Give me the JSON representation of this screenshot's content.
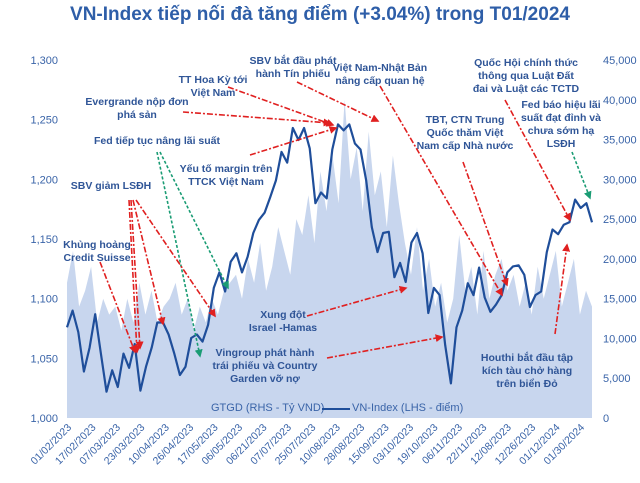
{
  "chart_data": {
    "type": "line",
    "title": "VN-Index tiếp nối đà tăng điểm (+3.04%) trong T01/2024",
    "x_tick_labels": [
      "01/02/2023",
      "17/02/2023",
      "07/03/2023",
      "23/03/2023",
      "10/04/2023",
      "26/04/2023",
      "17/05/2023",
      "06/05/2023",
      "06/21/2023",
      "07/07/2023",
      "25/07/2023",
      "10/08/2023",
      "28/08/2023",
      "15/09/2023",
      "03/10/2023",
      "19/10/2023",
      "06/11/2023",
      "22/11/2023",
      "12/08/2023",
      "12/26/2023",
      "01/12/2024",
      "01/30/2024"
    ],
    "left_axis": {
      "label": "VN-Index (LHS - điểm)",
      "ylim": [
        1000,
        1300
      ],
      "ticks": [
        "1,000",
        "1,050",
        "1,100",
        "1,150",
        "1,200",
        "1,250",
        "1,300"
      ]
    },
    "right_axis": {
      "label": "GTGD (RHS - Tỷ VND)",
      "ylim": [
        0,
        45000
      ],
      "ticks": [
        "0",
        "5,000",
        "10,000",
        "15,000",
        "20,000",
        "25,000",
        "30,000",
        "35,000",
        "40,000",
        "45,000"
      ]
    },
    "legend_position": "bottom",
    "grid": false,
    "series": [
      {
        "name": "GTGD (RHS - Tỷ VND)",
        "type": "area",
        "axis": "right",
        "color": "#c8d6ee",
        "values": [
          17000,
          21000,
          14000,
          16000,
          19000,
          12000,
          15000,
          13000,
          14000,
          11000,
          15000,
          12000,
          17000,
          13000,
          16000,
          12000,
          14000,
          15000,
          17000,
          13000,
          15000,
          11000,
          14000,
          12000,
          15000,
          13000,
          16000,
          17000,
          18000,
          15000,
          20000,
          17000,
          22000,
          16000,
          19000,
          24000,
          21000,
          18000,
          25000,
          23000,
          28000,
          22000,
          31000,
          26000,
          33000,
          27000,
          40000,
          30000,
          34000,
          26000,
          36000,
          28000,
          31000,
          24000,
          33000,
          27000,
          22000,
          18000,
          24000,
          16000,
          20000,
          14000,
          17000,
          12000,
          15000,
          23000,
          16000,
          19000,
          13000,
          21000,
          15000,
          18000,
          20000,
          16000,
          18000,
          14000,
          17000,
          13000,
          19000,
          15000,
          18000,
          21000,
          14000,
          17000,
          20000,
          13000,
          16000,
          14000
        ]
      },
      {
        "name": "VN-Index (LHS - điểm)",
        "type": "line",
        "axis": "left",
        "color": "#1f4e9a",
        "values": [
          1076,
          1090,
          1072,
          1039,
          1059,
          1087,
          1054,
          1022,
          1040,
          1026,
          1054,
          1042,
          1062,
          1023,
          1043,
          1059,
          1080,
          1080,
          1070,
          1054,
          1036,
          1043,
          1067,
          1070,
          1064,
          1078,
          1109,
          1122,
          1106,
          1131,
          1138,
          1122,
          1135,
          1155,
          1166,
          1172,
          1185,
          1199,
          1223,
          1214,
          1243,
          1233,
          1243,
          1226,
          1180,
          1189,
          1184,
          1225,
          1246,
          1241,
          1246,
          1230,
          1225,
          1199,
          1160,
          1139,
          1155,
          1156,
          1118,
          1130,
          1114,
          1147,
          1155,
          1138,
          1088,
          1109,
          1103,
          1061,
          1029,
          1076,
          1090,
          1113,
          1103,
          1126,
          1101,
          1089,
          1095,
          1103,
          1122,
          1127,
          1128,
          1120,
          1093,
          1103,
          1106,
          1139,
          1158,
          1154,
          1162,
          1164,
          1183,
          1176,
          1180,
          1164
        ]
      }
    ],
    "annotations": [
      {
        "lines": [
          "SBV bắt đầu phát",
          "hành Tín phiếu"
        ],
        "arrow_color": "red"
      },
      {
        "lines": [
          "TT Hoa Kỳ tới",
          "Việt Nam"
        ],
        "arrow_color": "red"
      },
      {
        "lines": [
          "Evergrande nộp đơn",
          "phá sản"
        ],
        "arrow_color": "red"
      },
      {
        "lines": [
          "Fed tiếp tục nâng lãi suất"
        ],
        "arrow_color": "green"
      },
      {
        "lines": [
          "Yếu tố margin trên",
          "TTCK Việt Nam"
        ],
        "arrow_color": "red"
      },
      {
        "lines": [
          "SBV giảm LSĐH"
        ],
        "arrow_color": "red"
      },
      {
        "lines": [
          "Khủng hoảng",
          "Credit Suisse"
        ],
        "arrow_color": "red"
      },
      {
        "lines": [
          "Xung đột",
          "Israel -Hamas"
        ],
        "arrow_color": "red"
      },
      {
        "lines": [
          "Vingroup phát hành",
          "trái phiếu và Country",
          "Garden vỡ nợ"
        ],
        "arrow_color": "red"
      },
      {
        "lines": [
          "Việt Nam-Nhật Bản",
          "nâng cấp quan hệ"
        ],
        "arrow_color": "red"
      },
      {
        "lines": [
          "TBT, CTN Trung",
          "Quốc thăm Việt",
          "Nam cấp Nhà nước"
        ],
        "arrow_color": "red"
      },
      {
        "lines": [
          "Quốc Hội chính thức",
          "thông qua Luật Đất",
          "đai và Luật các TCTD"
        ],
        "arrow_color": "red"
      },
      {
        "lines": [
          "Fed báo hiệu lãi",
          "suất đạt đỉnh và",
          "chưa sớm hạ",
          "LSĐH"
        ],
        "arrow_color": "green"
      },
      {
        "lines": [
          "Houthi bắt đầu tập",
          "kích tàu chở hàng",
          "trên biển Đỏ"
        ],
        "arrow_color": "red"
      }
    ],
    "colors": {
      "title": "#2e5ea8",
      "text": "#2f5597",
      "arrow_red": "#e02020",
      "arrow_green": "#1a9c74"
    }
  }
}
